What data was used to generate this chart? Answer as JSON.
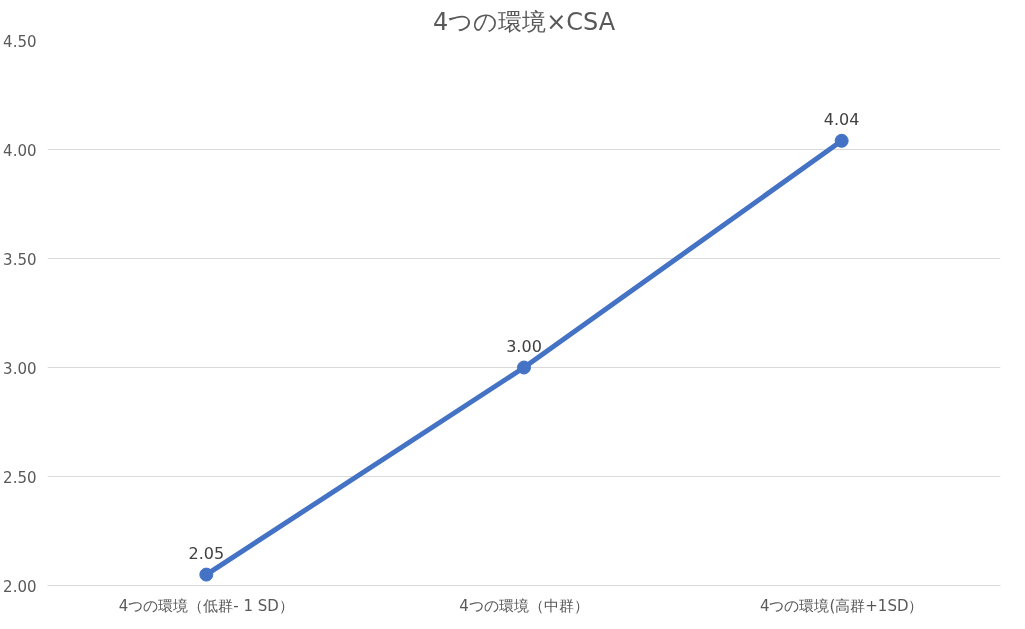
{
  "chart_data": {
    "type": "line",
    "title": "4つの環境×CSA",
    "categories": [
      "4つの環境（低群- 1 SD）",
      "4つの環境（中群）",
      "4つの環境(高群+1SD）"
    ],
    "series": [
      {
        "color": "#4472c4",
        "values": [
          2.05,
          3.0,
          4.04
        ],
        "value_labels": [
          "2.05",
          "3.00",
          "4.04"
        ]
      }
    ],
    "ylim": [
      2,
      4.5
    ],
    "yticks": [
      {
        "value": 2,
        "label": "2.00"
      },
      {
        "value": 2.5,
        "label": "2.50"
      },
      {
        "value": 3,
        "label": "3.00"
      },
      {
        "value": 3.5,
        "label": "3.50"
      },
      {
        "value": 4,
        "label": "4.00"
      },
      {
        "value": 4.5,
        "label": "4.50"
      }
    ],
    "grid": "y",
    "marker": "circle",
    "line_style": "solid"
  }
}
